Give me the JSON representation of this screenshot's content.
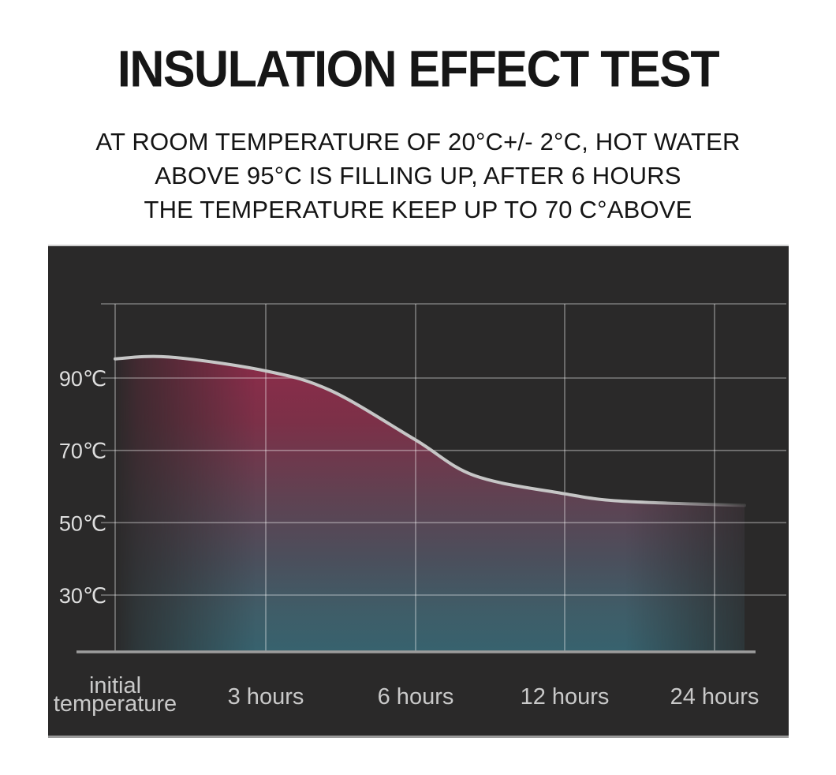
{
  "page": {
    "background": "#ffffff"
  },
  "header": {
    "title": "INSULATION EFFECT TEST",
    "subtitle_lines": [
      "AT ROOM TEMPERATURE OF 20°C+/- 2°C, HOT WATER",
      "ABOVE 95°C IS FILLING UP, AFTER 6 HOURS",
      "THE TEMPERATURE KEEP UP TO 70 C°ABOVE"
    ]
  },
  "chart_data": {
    "type": "area",
    "title": "INSULATION EFFECT TEST",
    "xlabel": "",
    "ylabel": "",
    "categories": [
      "initial temperature",
      "3 hours",
      "6 hours",
      "12 hours",
      "24 hours"
    ],
    "x_tick_label_lines": [
      [
        "initial",
        "temperature"
      ],
      [
        "3 hours"
      ],
      [
        "6 hours"
      ],
      [
        "12 hours"
      ],
      [
        "24 hours"
      ]
    ],
    "values_c": [
      95,
      92,
      73,
      58,
      55
    ],
    "curve_profile": [
      [
        0.0,
        95.3
      ],
      [
        0.09,
        95.8
      ],
      [
        0.25,
        92.0
      ],
      [
        0.36,
        86.5
      ],
      [
        0.5,
        73.0
      ],
      [
        0.6,
        63.0
      ],
      [
        0.75,
        58.0
      ],
      [
        0.84,
        56.0
      ],
      [
        1.0,
        55.0
      ]
    ],
    "y_ticks": [
      {
        "value": 90,
        "label": "90℃"
      },
      {
        "value": 70,
        "label": "70℃"
      },
      {
        "value": 50,
        "label": "50℃"
      },
      {
        "value": 30,
        "label": "30℃"
      }
    ],
    "ylim": [
      20,
      110
    ],
    "grid": true,
    "legend": "none",
    "colors": {
      "panel_bg": "#2a2929",
      "grid": "rgba(255,255,255,0.38)",
      "axis": "#9c9c9c",
      "curve": "#c6c6c6",
      "y_tick_label": "#dedede",
      "x_tick_label": "#c9c9c9",
      "fill_top": "#8f2b4a",
      "fill_upper_mid": "#7c3048",
      "fill_mid": "#5f4252",
      "fill_lower_mid": "#4b4f5c",
      "fill_teal": "#3f5d68",
      "fill_bottom": "#37626e"
    }
  }
}
